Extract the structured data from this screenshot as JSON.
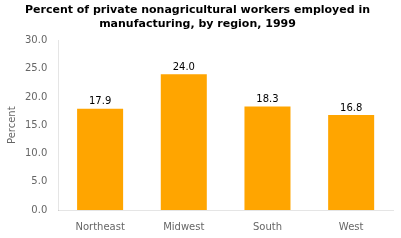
{
  "chart_data": {
    "type": "bar",
    "title": "Percent of private nonagricultural workers employed in\nmanufacturing, by region, 1999",
    "ylabel": "Percent",
    "categories": [
      "Northeast",
      "Midwest",
      "South",
      "West"
    ],
    "values": [
      17.9,
      24.0,
      18.3,
      16.8
    ],
    "value_labels": [
      "17.9",
      "24.0",
      "18.3",
      "16.8"
    ],
    "data_labels": true,
    "color": "#FFA500",
    "ylim": [
      0,
      30
    ],
    "yticks": [
      {
        "value": 0,
        "label": "0.0"
      },
      {
        "value": 5,
        "label": "5.0"
      },
      {
        "value": 10,
        "label": "10.0"
      },
      {
        "value": 15,
        "label": "15.0"
      },
      {
        "value": 20,
        "label": "20.0"
      },
      {
        "value": 25,
        "label": "25.0"
      },
      {
        "value": 30,
        "label": "30.0"
      }
    ],
    "grid": false
  }
}
